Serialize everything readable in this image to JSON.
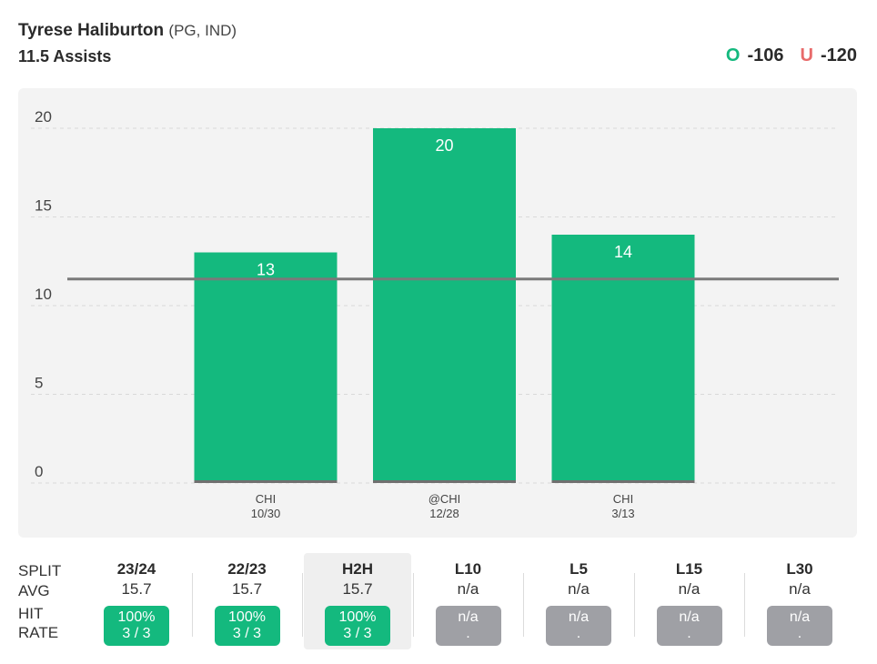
{
  "player": {
    "name": "Tyrese Haliburton",
    "meta": "(PG, IND)",
    "prop": "11.5 Assists"
  },
  "odds": {
    "over_letter": "O",
    "over_value": "-106",
    "under_letter": "U",
    "under_value": "-120"
  },
  "colors": {
    "bar": "#14b97e",
    "line": "#7a7a7a",
    "na": "#9fa0a5"
  },
  "chart_data": {
    "type": "bar",
    "categories": [
      "CHI\n10/30",
      "@CHI\n12/28",
      "CHI\n3/13"
    ],
    "category_lines": [
      [
        "CHI",
        "10/30"
      ],
      [
        "@CHI",
        "12/28"
      ],
      [
        "CHI",
        "3/13"
      ]
    ],
    "values": [
      13,
      20,
      14
    ],
    "ylim": [
      0,
      20
    ],
    "yticks": [
      0,
      5,
      10,
      15,
      20
    ],
    "reference_line": 11.5,
    "grid": true,
    "title": "",
    "xlabel": "",
    "ylabel": ""
  },
  "splits": {
    "row_labels": {
      "split": "SPLIT",
      "avg": "AVG",
      "hit1": "HIT",
      "hit2": "RATE"
    },
    "columns": [
      {
        "name": "23/24",
        "avg": "15.7",
        "rate": "100%",
        "count": "3 / 3",
        "status": "hit"
      },
      {
        "name": "22/23",
        "avg": "15.7",
        "rate": "100%",
        "count": "3 / 3",
        "status": "hit"
      },
      {
        "name": "H2H",
        "avg": "15.7",
        "rate": "100%",
        "count": "3 / 3",
        "status": "hit",
        "active": true
      },
      {
        "name": "L10",
        "avg": "n/a",
        "rate": "n/a",
        "count": ".",
        "status": "na"
      },
      {
        "name": "L5",
        "avg": "n/a",
        "rate": "n/a",
        "count": ".",
        "status": "na"
      },
      {
        "name": "L15",
        "avg": "n/a",
        "rate": "n/a",
        "count": ".",
        "status": "na"
      },
      {
        "name": "L30",
        "avg": "n/a",
        "rate": "n/a",
        "count": ".",
        "status": "na"
      }
    ]
  }
}
